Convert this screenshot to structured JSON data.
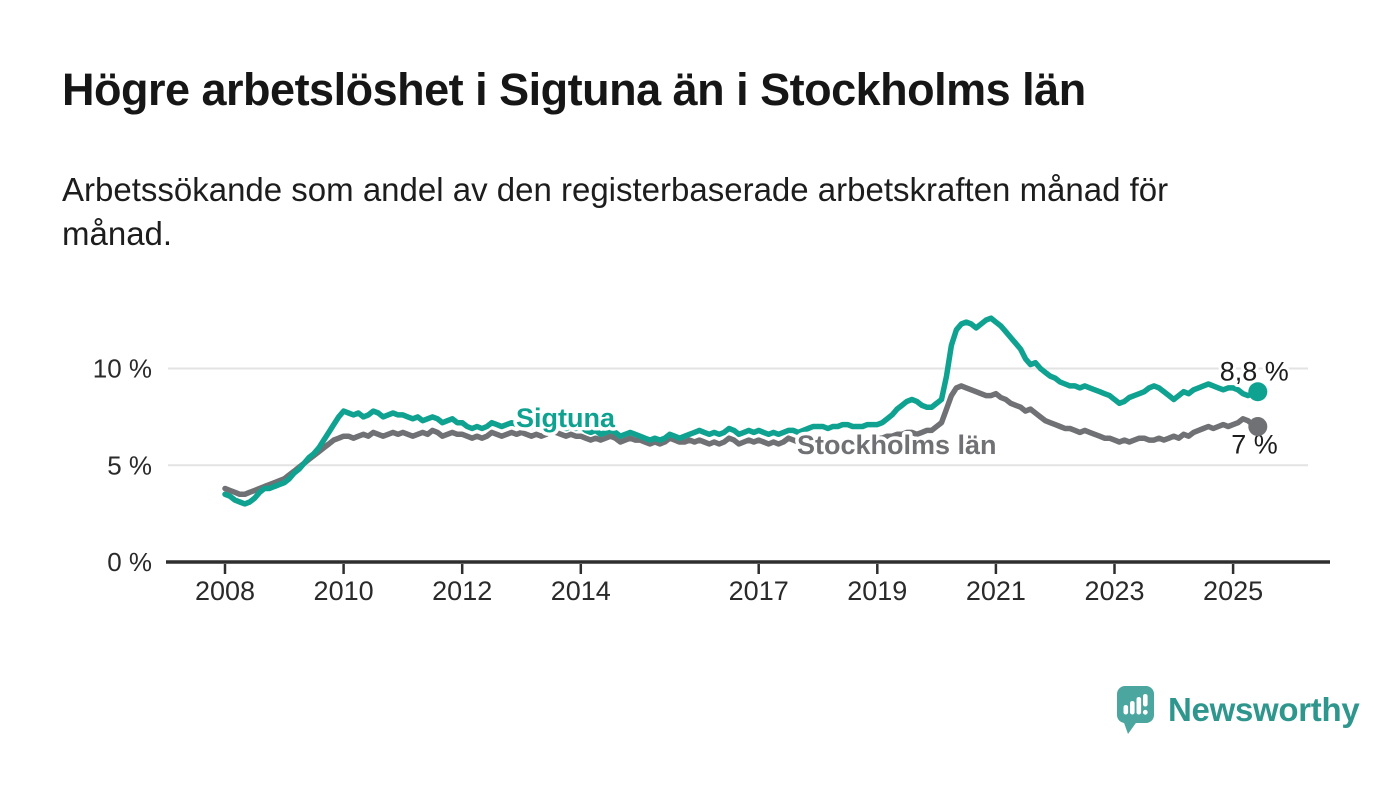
{
  "header": {
    "title": "Högre arbetslöshet i Sigtuna än i Stockholms län",
    "subtitle": "Arbetssökande som andel av den registerbaserade arbetskraften månad för\nmånad."
  },
  "logo": {
    "text": "Newsworthy",
    "icon": "newsworthy-speech-bubble-bar-chart-icon",
    "icon_color": "#4aa69e",
    "text_color": "#2f968e"
  },
  "colors": {
    "sigtuna": "#0fa291",
    "stockholm": "#707174",
    "gridline": "#e3e3e3",
    "axis": "#2e2e2e",
    "text": "#1d1d1d",
    "tick_text": "#2a2a2a",
    "background": "#ffffff"
  },
  "chart_data": {
    "type": "line",
    "title": "Högre arbetslöshet i Sigtuna än i Stockholms län",
    "subtitle": "Arbetssökande som andel av den registerbaserade arbetskraften månad för månad.",
    "unit": "%",
    "x_start_year": 2008,
    "x_interval": "monthly",
    "x_end_label_period": "mitten av 2025",
    "x_ticks": [
      2008,
      2010,
      2012,
      2014,
      2017,
      2019,
      2021,
      2023,
      2025
    ],
    "y_ticks": [
      0,
      5,
      10
    ],
    "y_tick_labels": [
      "0 %",
      "5 %",
      "10 %"
    ],
    "ylim": [
      0,
      13.5
    ],
    "grid": "horizontal",
    "legend_position": "inline-labels",
    "series": [
      {
        "name": "Stockholms län",
        "color": "#707174",
        "end_value": 7.0,
        "end_label": "7 %",
        "values": [
          3.8,
          3.7,
          3.6,
          3.5,
          3.5,
          3.6,
          3.7,
          3.8,
          3.9,
          4.0,
          4.1,
          4.2,
          4.3,
          4.5,
          4.7,
          4.9,
          5.1,
          5.3,
          5.5,
          5.7,
          5.9,
          6.1,
          6.3,
          6.4,
          6.5,
          6.5,
          6.4,
          6.5,
          6.6,
          6.5,
          6.7,
          6.6,
          6.5,
          6.6,
          6.7,
          6.6,
          6.7,
          6.6,
          6.5,
          6.6,
          6.7,
          6.6,
          6.8,
          6.7,
          6.5,
          6.6,
          6.7,
          6.6,
          6.6,
          6.5,
          6.4,
          6.5,
          6.4,
          6.5,
          6.7,
          6.6,
          6.5,
          6.6,
          6.7,
          6.6,
          6.7,
          6.6,
          6.5,
          6.6,
          6.5,
          6.6,
          6.8,
          6.7,
          6.6,
          6.5,
          6.6,
          6.5,
          6.5,
          6.4,
          6.3,
          6.4,
          6.3,
          6.4,
          6.5,
          6.4,
          6.2,
          6.3,
          6.4,
          6.3,
          6.3,
          6.2,
          6.1,
          6.2,
          6.1,
          6.2,
          6.4,
          6.3,
          6.2,
          6.2,
          6.3,
          6.2,
          6.3,
          6.2,
          6.1,
          6.2,
          6.1,
          6.2,
          6.4,
          6.3,
          6.1,
          6.2,
          6.3,
          6.2,
          6.3,
          6.2,
          6.1,
          6.2,
          6.1,
          6.2,
          6.4,
          6.3,
          6.2,
          6.2,
          6.3,
          6.2,
          6.3,
          6.2,
          6.1,
          6.2,
          6.1,
          6.2,
          6.3,
          6.2,
          6.1,
          6.2,
          6.3,
          6.4,
          6.4,
          6.4,
          6.5,
          6.5,
          6.6,
          6.6,
          6.7,
          6.7,
          6.6,
          6.7,
          6.8,
          6.8,
          7.0,
          7.2,
          7.9,
          8.6,
          9.0,
          9.1,
          9.0,
          8.9,
          8.8,
          8.7,
          8.6,
          8.6,
          8.7,
          8.5,
          8.4,
          8.2,
          8.1,
          8.0,
          7.8,
          7.9,
          7.7,
          7.5,
          7.3,
          7.2,
          7.1,
          7.0,
          6.9,
          6.9,
          6.8,
          6.7,
          6.8,
          6.7,
          6.6,
          6.5,
          6.4,
          6.4,
          6.3,
          6.2,
          6.3,
          6.2,
          6.3,
          6.4,
          6.4,
          6.3,
          6.3,
          6.4,
          6.3,
          6.4,
          6.5,
          6.4,
          6.6,
          6.5,
          6.7,
          6.8,
          6.9,
          7.0,
          6.9,
          7.0,
          7.1,
          7.0,
          7.1,
          7.2,
          7.4,
          7.3,
          7.1,
          7.0
        ]
      },
      {
        "name": "Sigtuna",
        "color": "#0fa291",
        "end_value": 8.8,
        "end_label": "8,8 %",
        "values": [
          3.5,
          3.4,
          3.2,
          3.1,
          3.0,
          3.1,
          3.3,
          3.6,
          3.8,
          3.8,
          3.9,
          4.0,
          4.1,
          4.3,
          4.6,
          4.8,
          5.1,
          5.4,
          5.6,
          5.9,
          6.3,
          6.7,
          7.1,
          7.5,
          7.8,
          7.7,
          7.6,
          7.7,
          7.5,
          7.6,
          7.8,
          7.7,
          7.5,
          7.6,
          7.7,
          7.6,
          7.6,
          7.5,
          7.4,
          7.5,
          7.3,
          7.4,
          7.5,
          7.4,
          7.2,
          7.3,
          7.4,
          7.2,
          7.2,
          7.0,
          6.9,
          7.0,
          6.9,
          7.0,
          7.2,
          7.1,
          7.0,
          7.1,
          7.2,
          7.1,
          7.2,
          7.1,
          7.0,
          7.1,
          7.0,
          7.1,
          7.2,
          7.1,
          7.0,
          6.9,
          7.0,
          6.9,
          7.0,
          6.8,
          6.7,
          6.8,
          6.6,
          6.7,
          6.8,
          6.7,
          6.5,
          6.6,
          6.7,
          6.6,
          6.5,
          6.4,
          6.3,
          6.4,
          6.3,
          6.4,
          6.6,
          6.5,
          6.4,
          6.5,
          6.6,
          6.7,
          6.8,
          6.7,
          6.6,
          6.7,
          6.6,
          6.7,
          6.9,
          6.8,
          6.6,
          6.7,
          6.8,
          6.7,
          6.8,
          6.7,
          6.6,
          6.7,
          6.6,
          6.7,
          6.8,
          6.8,
          6.7,
          6.8,
          6.9,
          7.0,
          7.0,
          7.0,
          6.9,
          7.0,
          7.0,
          7.1,
          7.1,
          7.0,
          7.0,
          7.0,
          7.1,
          7.1,
          7.1,
          7.2,
          7.4,
          7.6,
          7.9,
          8.1,
          8.3,
          8.4,
          8.3,
          8.1,
          8.0,
          8.0,
          8.2,
          8.4,
          9.6,
          11.2,
          12.0,
          12.3,
          12.4,
          12.3,
          12.1,
          12.3,
          12.5,
          12.6,
          12.4,
          12.2,
          11.9,
          11.6,
          11.3,
          11.0,
          10.5,
          10.2,
          10.3,
          10.0,
          9.8,
          9.6,
          9.5,
          9.3,
          9.2,
          9.1,
          9.1,
          9.0,
          9.1,
          9.0,
          8.9,
          8.8,
          8.7,
          8.6,
          8.4,
          8.2,
          8.3,
          8.5,
          8.6,
          8.7,
          8.8,
          9.0,
          9.1,
          9.0,
          8.8,
          8.6,
          8.4,
          8.6,
          8.8,
          8.7,
          8.9,
          9.0,
          9.1,
          9.2,
          9.1,
          9.0,
          8.9,
          9.0,
          9.0,
          8.9,
          8.7,
          8.6,
          8.7,
          8.8
        ]
      }
    ]
  }
}
